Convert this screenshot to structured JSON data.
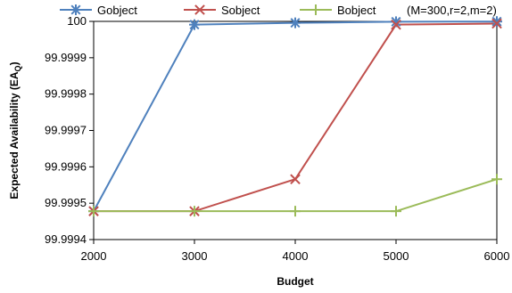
{
  "chart_data": {
    "type": "line",
    "title": "",
    "xlabel": "Budget",
    "ylabel": "Expected  Availability (EA",
    "ylabel_subscript": "Q",
    "ylabel_close": ")",
    "x": [
      2000,
      3000,
      4000,
      5000,
      6000
    ],
    "xlim": [
      2000,
      6000
    ],
    "ylim": [
      99.9994,
      100
    ],
    "x_ticks": [
      "2000",
      "3000",
      "4000",
      "5000",
      "6000"
    ],
    "y_ticks": [
      "99.9994",
      "99.9995",
      "99.9996",
      "99.9997",
      "99.9998",
      "99.9999",
      "100"
    ],
    "y_tick_values": [
      99.9994,
      99.9995,
      99.9996,
      99.9997,
      99.9998,
      99.9999,
      100
    ],
    "grid": false,
    "legend_position": "top",
    "series": [
      {
        "name": "Gobject",
        "color": "#4f81bd",
        "marker": "asterisk",
        "values": [
          99.999478,
          99.999991,
          99.999996,
          99.999999,
          99.9999995
        ]
      },
      {
        "name": "Sobject",
        "color": "#c0504d",
        "marker": "cross",
        "values": [
          99.999478,
          99.999478,
          99.999566,
          99.999991,
          99.999994
        ]
      },
      {
        "name": "Bobject",
        "color": "#9bbb59",
        "marker": "plus",
        "values": [
          99.999478,
          99.999478,
          99.999478,
          99.999478,
          99.999566
        ]
      }
    ],
    "legend_note": "(M=300,r=2,m=2)"
  }
}
